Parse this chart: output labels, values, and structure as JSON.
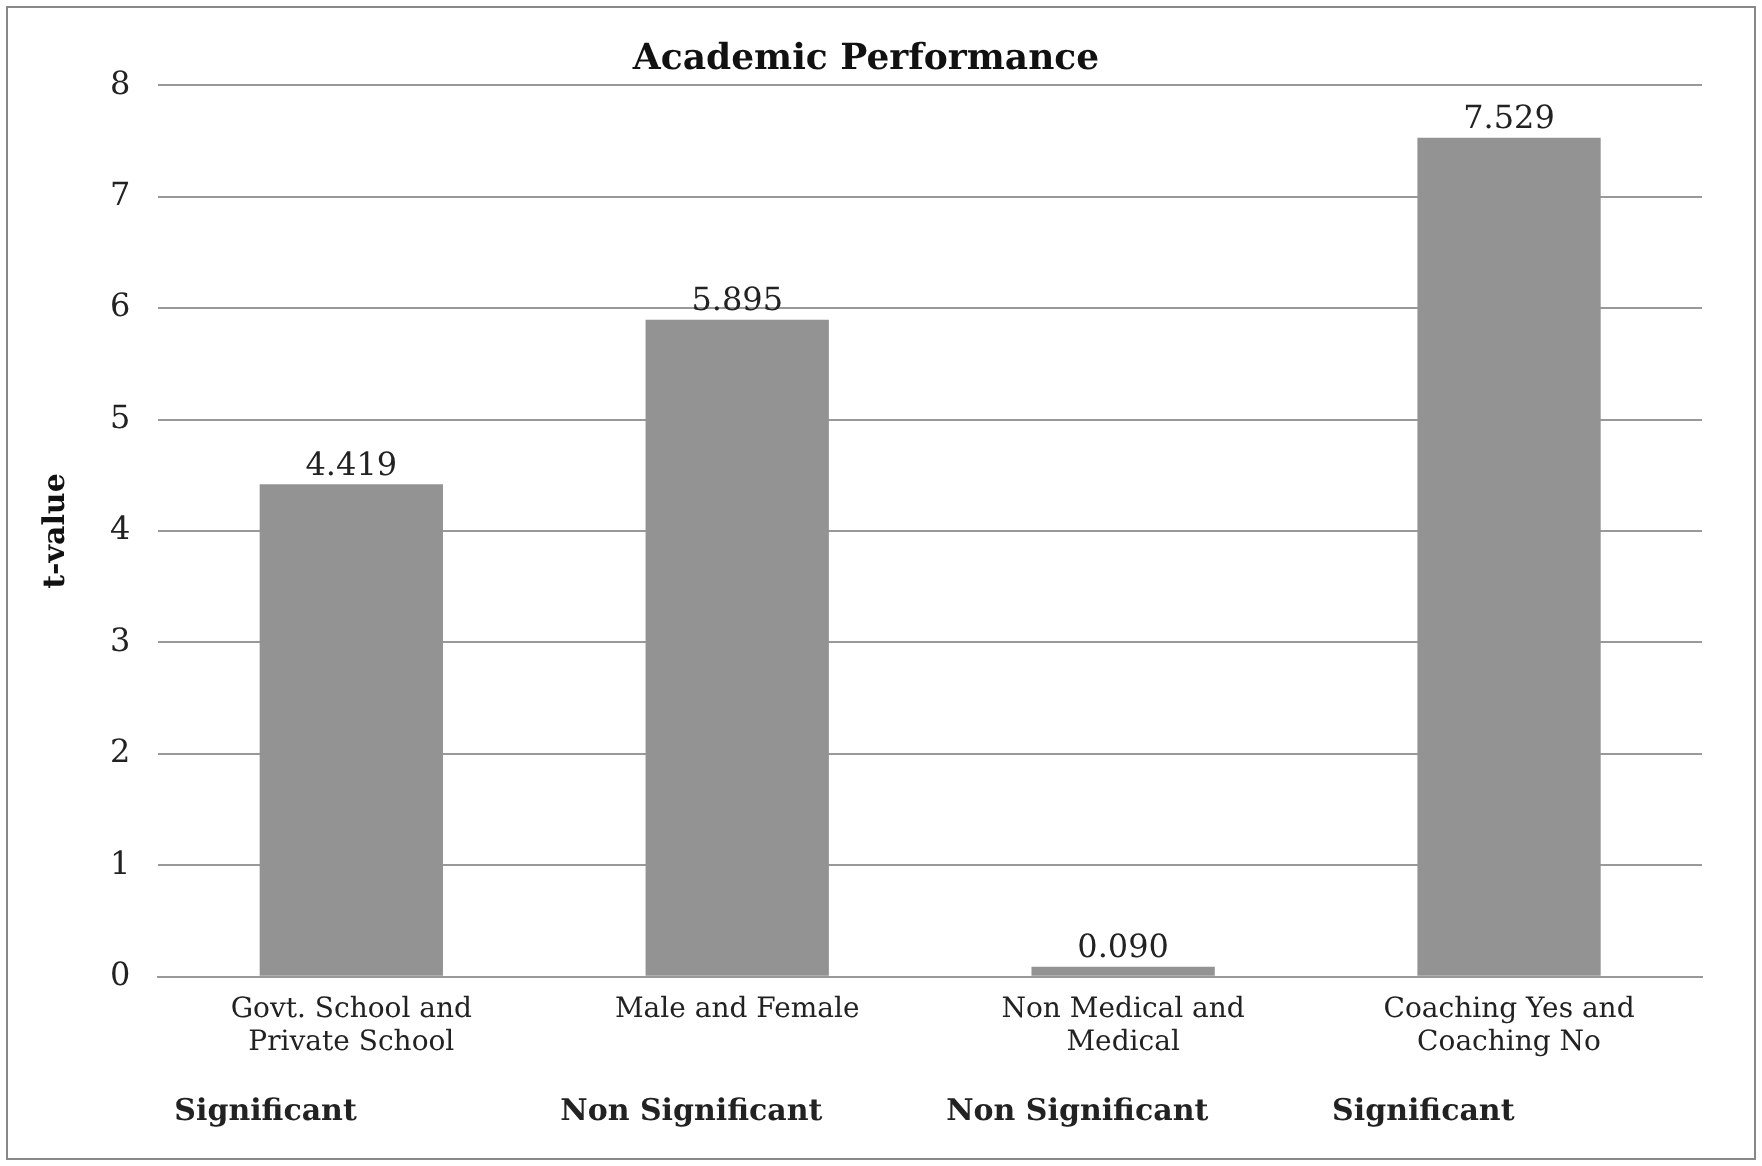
{
  "chart_data": {
    "type": "bar",
    "title": "Academic Performance",
    "ylabel": "t-value",
    "categories": [
      "Govt. School and Private School",
      "Male and Female",
      "Non Medical and Medical",
      "Coaching Yes and Coaching No"
    ],
    "values": [
      4.419,
      5.895,
      0.09,
      7.529
    ],
    "value_labels": [
      "4.419",
      "5.895",
      "0.090",
      "7.529"
    ],
    "color": "#939393",
    "ylim": [
      0,
      8
    ],
    "yticks": [
      0,
      1,
      2,
      3,
      4,
      5,
      6,
      7,
      8
    ],
    "grid": "y",
    "legend": false,
    "annotations": [
      "Significant",
      "Non Significant",
      "Non Significant",
      "Significant"
    ]
  }
}
